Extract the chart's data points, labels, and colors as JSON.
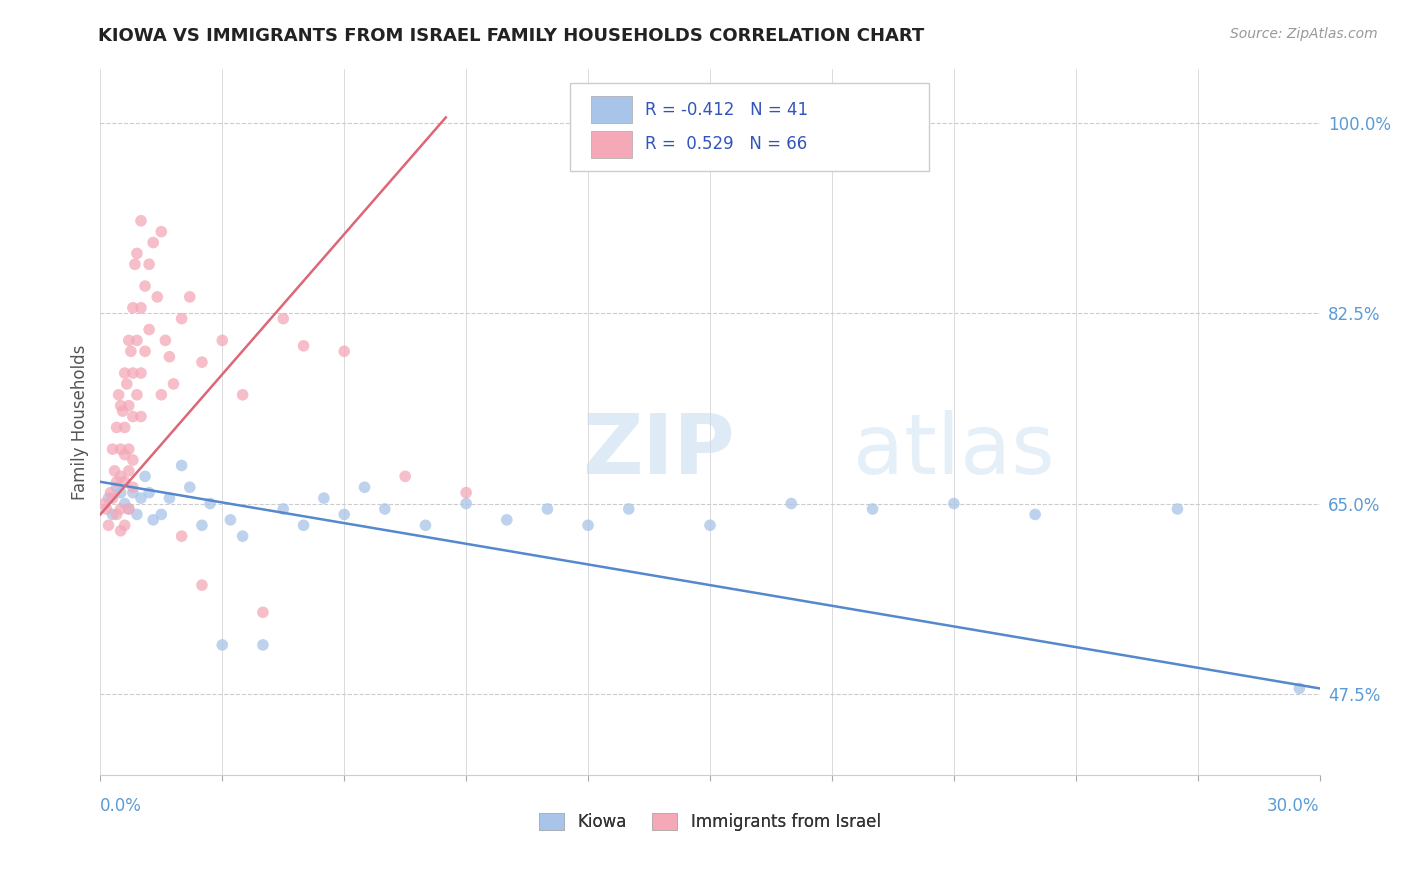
{
  "title": "KIOWA VS IMMIGRANTS FROM ISRAEL FAMILY HOUSEHOLDS CORRELATION CHART",
  "source": "Source: ZipAtlas.com",
  "ylabel": "Family Households",
  "y_ticks": [
    47.5,
    65.0,
    82.5,
    100.0
  ],
  "y_tick_labels": [
    "47.5%",
    "65.0%",
    "82.5%",
    "100.0%"
  ],
  "x_min": 0.0,
  "x_max": 30.0,
  "y_min": 40.0,
  "y_max": 105.0,
  "kiowa_color": "#a8c4e8",
  "israel_color": "#f4a8b8",
  "kiowa_line_color": "#5588cc",
  "israel_line_color": "#dd6677",
  "legend_kiowa_r": "-0.412",
  "legend_kiowa_n": "41",
  "legend_israel_r": "0.529",
  "legend_israel_n": "66",
  "kiowa_points": [
    [
      0.2,
      65.5
    ],
    [
      0.3,
      64.0
    ],
    [
      0.4,
      66.5
    ],
    [
      0.5,
      66.0
    ],
    [
      0.6,
      65.0
    ],
    [
      0.7,
      64.5
    ],
    [
      0.8,
      66.0
    ],
    [
      0.9,
      64.0
    ],
    [
      1.0,
      65.5
    ],
    [
      1.1,
      67.5
    ],
    [
      1.2,
      66.0
    ],
    [
      1.3,
      63.5
    ],
    [
      1.5,
      64.0
    ],
    [
      1.7,
      65.5
    ],
    [
      2.0,
      68.5
    ],
    [
      2.2,
      66.5
    ],
    [
      2.5,
      63.0
    ],
    [
      2.7,
      65.0
    ],
    [
      3.0,
      52.0
    ],
    [
      3.2,
      63.5
    ],
    [
      3.5,
      62.0
    ],
    [
      4.0,
      52.0
    ],
    [
      4.5,
      64.5
    ],
    [
      5.0,
      63.0
    ],
    [
      5.5,
      65.5
    ],
    [
      6.0,
      64.0
    ],
    [
      6.5,
      66.5
    ],
    [
      7.0,
      64.5
    ],
    [
      8.0,
      63.0
    ],
    [
      9.0,
      65.0
    ],
    [
      10.0,
      63.5
    ],
    [
      11.0,
      64.5
    ],
    [
      12.0,
      63.0
    ],
    [
      13.0,
      64.5
    ],
    [
      15.0,
      63.0
    ],
    [
      17.0,
      65.0
    ],
    [
      19.0,
      64.5
    ],
    [
      21.0,
      65.0
    ],
    [
      23.0,
      64.0
    ],
    [
      26.5,
      64.5
    ],
    [
      29.5,
      48.0
    ]
  ],
  "israel_points": [
    [
      0.1,
      65.0
    ],
    [
      0.15,
      64.5
    ],
    [
      0.2,
      63.0
    ],
    [
      0.25,
      66.0
    ],
    [
      0.3,
      70.0
    ],
    [
      0.3,
      65.5
    ],
    [
      0.35,
      68.0
    ],
    [
      0.4,
      72.0
    ],
    [
      0.4,
      67.0
    ],
    [
      0.4,
      64.0
    ],
    [
      0.45,
      75.0
    ],
    [
      0.5,
      74.0
    ],
    [
      0.5,
      70.0
    ],
    [
      0.5,
      67.5
    ],
    [
      0.5,
      64.5
    ],
    [
      0.5,
      62.5
    ],
    [
      0.55,
      73.5
    ],
    [
      0.6,
      77.0
    ],
    [
      0.6,
      72.0
    ],
    [
      0.6,
      69.5
    ],
    [
      0.6,
      67.0
    ],
    [
      0.6,
      63.0
    ],
    [
      0.65,
      76.0
    ],
    [
      0.7,
      80.0
    ],
    [
      0.7,
      74.0
    ],
    [
      0.7,
      70.0
    ],
    [
      0.7,
      68.0
    ],
    [
      0.7,
      64.5
    ],
    [
      0.75,
      79.0
    ],
    [
      0.8,
      83.0
    ],
    [
      0.8,
      77.0
    ],
    [
      0.8,
      73.0
    ],
    [
      0.8,
      69.0
    ],
    [
      0.8,
      66.5
    ],
    [
      0.85,
      87.0
    ],
    [
      0.9,
      88.0
    ],
    [
      0.9,
      80.0
    ],
    [
      0.9,
      75.0
    ],
    [
      1.0,
      91.0
    ],
    [
      1.0,
      83.0
    ],
    [
      1.0,
      77.0
    ],
    [
      1.0,
      73.0
    ],
    [
      1.1,
      85.0
    ],
    [
      1.1,
      79.0
    ],
    [
      1.2,
      87.0
    ],
    [
      1.2,
      81.0
    ],
    [
      1.3,
      89.0
    ],
    [
      1.4,
      84.0
    ],
    [
      1.5,
      90.0
    ],
    [
      1.5,
      75.0
    ],
    [
      1.6,
      80.0
    ],
    [
      1.7,
      78.5
    ],
    [
      1.8,
      76.0
    ],
    [
      2.0,
      82.0
    ],
    [
      2.0,
      62.0
    ],
    [
      2.2,
      84.0
    ],
    [
      2.5,
      78.0
    ],
    [
      2.5,
      57.5
    ],
    [
      3.0,
      80.0
    ],
    [
      3.5,
      75.0
    ],
    [
      4.0,
      55.0
    ],
    [
      4.5,
      82.0
    ],
    [
      5.0,
      79.5
    ],
    [
      6.0,
      79.0
    ],
    [
      7.5,
      67.5
    ],
    [
      9.0,
      66.0
    ]
  ],
  "kiowa_trendline": [
    0.0,
    67.0,
    30.0,
    48.0
  ],
  "israel_trendline": [
    0.0,
    64.0,
    8.5,
    100.5
  ]
}
